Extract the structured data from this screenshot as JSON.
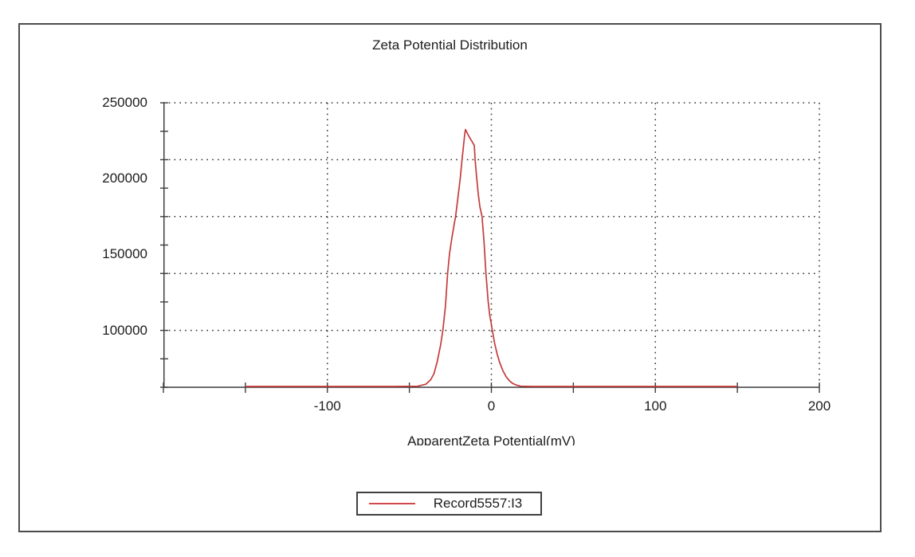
{
  "window": {
    "background_color": "#ffffff",
    "frame_border_color": "#4c4c4c"
  },
  "chart_data": {
    "type": "line",
    "title": "Zeta Potential Distribution",
    "xlabel": "ApparentZeta Potential(mV)",
    "xlim": [
      -200,
      200
    ],
    "x_tick_step": 50,
    "x_tick_labels": [
      "-100",
      "0",
      "100",
      "200"
    ],
    "x_tick_label_values": [
      -100,
      0,
      100,
      200
    ],
    "y_axis": {
      "visible_min": 62500,
      "visible_max": 250000,
      "tick_labels": [
        "250000",
        "200000",
        "150000",
        "100000"
      ],
      "tick_label_values": [
        250000,
        200000,
        150000,
        100000
      ],
      "minor_tick_step": 18750,
      "gridline_step": 37500
    },
    "grid": {
      "style": "dotted",
      "color": "#2e2e2e"
    },
    "axis_color": "#3d3d3d",
    "legend": {
      "position": "bottom-center",
      "entries": [
        {
          "label": "Record5557:I3",
          "color": "#d04a4a"
        }
      ]
    },
    "series": [
      {
        "name": "Record5557:I3",
        "color": "#c53b3b",
        "peak_mv": -15.8,
        "peak_counts": 232400,
        "points_mv_counts": [
          [
            -150,
            63000
          ],
          [
            -60,
            63000
          ],
          [
            -45,
            63200
          ],
          [
            -40,
            64500
          ],
          [
            -37,
            67500
          ],
          [
            -35,
            71500
          ],
          [
            -33,
            79500
          ],
          [
            -31,
            90000
          ],
          [
            -29.6,
            100000
          ],
          [
            -28,
            116000
          ],
          [
            -26.7,
            137500
          ],
          [
            -25.5,
            150500
          ],
          [
            -24,
            161500
          ],
          [
            -22.5,
            171000
          ],
          [
            -21.8,
            175000
          ],
          [
            -20.5,
            186500
          ],
          [
            -19,
            200000
          ],
          [
            -17.9,
            212500
          ],
          [
            -17,
            221500
          ],
          [
            -16.3,
            229000
          ],
          [
            -15.8,
            232400
          ],
          [
            -14.5,
            229500
          ],
          [
            -13,
            226500
          ],
          [
            -11.5,
            224000
          ],
          [
            -10.4,
            221800
          ],
          [
            -9.9,
            212500
          ],
          [
            -9,
            201000
          ],
          [
            -8,
            190000
          ],
          [
            -7,
            181500
          ],
          [
            -5.7,
            175000
          ],
          [
            -4.5,
            159000
          ],
          [
            -3.3,
            137500
          ],
          [
            -2,
            119500
          ],
          [
            -1,
            110000
          ],
          [
            0,
            104000
          ],
          [
            0.6,
            100000
          ],
          [
            2,
            91500
          ],
          [
            3.5,
            84500
          ],
          [
            5,
            79000
          ],
          [
            7,
            73500
          ],
          [
            9,
            69500
          ],
          [
            11,
            66800
          ],
          [
            13,
            65000
          ],
          [
            15,
            64000
          ],
          [
            18,
            63200
          ],
          [
            25,
            63000
          ],
          [
            150,
            63000
          ]
        ]
      }
    ]
  }
}
